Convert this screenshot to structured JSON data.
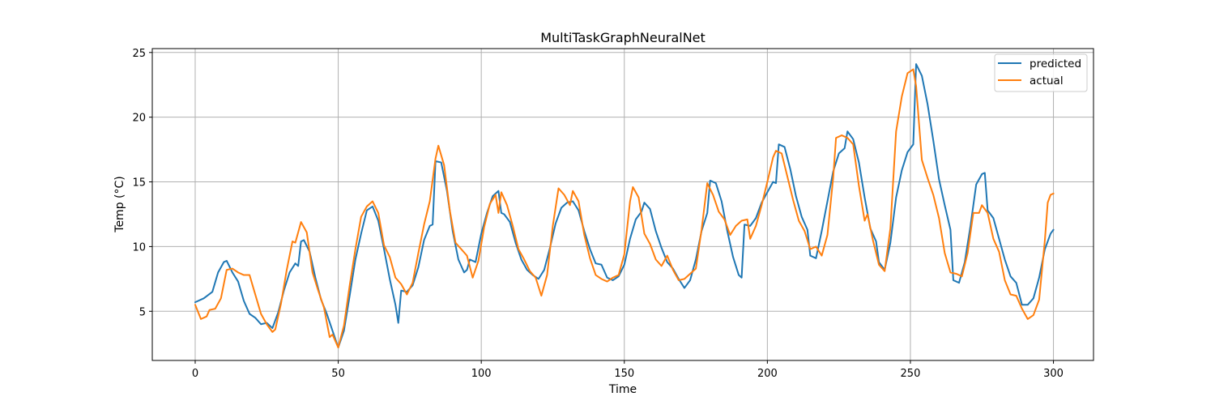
{
  "chart_data": {
    "type": "line",
    "title": "MultiTaskGraphNeuralNet",
    "xlabel": "Time",
    "ylabel": "Temp (°C)",
    "xlim": [
      -15,
      314
    ],
    "ylim": [
      1.2,
      25.3
    ],
    "xticks": [
      0,
      50,
      100,
      150,
      200,
      250,
      300
    ],
    "yticks": [
      5,
      10,
      15,
      20,
      25
    ],
    "grid": true,
    "legend_position": "top-right",
    "colors": {
      "predicted": "#1f77b4",
      "actual": "#ff7f0e",
      "grid": "#b0b0b0"
    },
    "series": [
      {
        "name": "predicted",
        "color": "#1f77b4",
        "points": [
          [
            0,
            5.7
          ],
          [
            3,
            6.0
          ],
          [
            6,
            6.5
          ],
          [
            8,
            8.0
          ],
          [
            10,
            8.8
          ],
          [
            11,
            8.9
          ],
          [
            13,
            8.0
          ],
          [
            15,
            7.3
          ],
          [
            17,
            5.8
          ],
          [
            19,
            4.8
          ],
          [
            21,
            4.5
          ],
          [
            23,
            4.0
          ],
          [
            25,
            4.1
          ],
          [
            27,
            3.7
          ],
          [
            29,
            4.9
          ],
          [
            31,
            6.6
          ],
          [
            33,
            8.0
          ],
          [
            35,
            8.7
          ],
          [
            36,
            8.5
          ],
          [
            37,
            10.4
          ],
          [
            38,
            10.5
          ],
          [
            40,
            9.6
          ],
          [
            42,
            7.6
          ],
          [
            44,
            5.9
          ],
          [
            46,
            4.8
          ],
          [
            48,
            3.5
          ],
          [
            50,
            2.2
          ],
          [
            52,
            3.5
          ],
          [
            54,
            6.2
          ],
          [
            56,
            9.0
          ],
          [
            58,
            11.0
          ],
          [
            60,
            12.8
          ],
          [
            62,
            13.1
          ],
          [
            64,
            12.0
          ],
          [
            66,
            9.8
          ],
          [
            68,
            7.5
          ],
          [
            70,
            5.5
          ],
          [
            71,
            4.1
          ],
          [
            72,
            6.6
          ],
          [
            74,
            6.5
          ],
          [
            76,
            7.0
          ],
          [
            78,
            8.4
          ],
          [
            80,
            10.5
          ],
          [
            82,
            11.6
          ],
          [
            83,
            11.7
          ],
          [
            84,
            16.6
          ],
          [
            86,
            16.5
          ],
          [
            88,
            14.3
          ],
          [
            90,
            11.2
          ],
          [
            92,
            9.0
          ],
          [
            94,
            8.0
          ],
          [
            95,
            8.2
          ],
          [
            96,
            9.0
          ],
          [
            98,
            8.8
          ],
          [
            100,
            11.0
          ],
          [
            102,
            12.6
          ],
          [
            104,
            13.9
          ],
          [
            106,
            14.3
          ],
          [
            107,
            12.6
          ],
          [
            108,
            12.5
          ],
          [
            110,
            11.9
          ],
          [
            112,
            10.3
          ],
          [
            114,
            9.0
          ],
          [
            116,
            8.2
          ],
          [
            118,
            7.8
          ],
          [
            120,
            7.5
          ],
          [
            122,
            8.2
          ],
          [
            124,
            9.9
          ],
          [
            126,
            11.8
          ],
          [
            128,
            13.0
          ],
          [
            130,
            13.4
          ],
          [
            132,
            13.5
          ],
          [
            134,
            12.8
          ],
          [
            136,
            11.2
          ],
          [
            138,
            9.8
          ],
          [
            140,
            8.7
          ],
          [
            142,
            8.6
          ],
          [
            144,
            7.6
          ],
          [
            146,
            7.4
          ],
          [
            148,
            7.7
          ],
          [
            150,
            8.6
          ],
          [
            152,
            10.6
          ],
          [
            154,
            12.1
          ],
          [
            156,
            12.7
          ],
          [
            157,
            13.4
          ],
          [
            159,
            12.9
          ],
          [
            161,
            11.2
          ],
          [
            163,
            9.9
          ],
          [
            165,
            8.8
          ],
          [
            167,
            8.3
          ],
          [
            169,
            7.5
          ],
          [
            171,
            6.8
          ],
          [
            173,
            7.4
          ],
          [
            175,
            9.0
          ],
          [
            177,
            11.2
          ],
          [
            179,
            12.6
          ],
          [
            180,
            15.1
          ],
          [
            182,
            14.9
          ],
          [
            184,
            13.5
          ],
          [
            186,
            11.2
          ],
          [
            188,
            9.2
          ],
          [
            190,
            7.8
          ],
          [
            191,
            7.6
          ],
          [
            192,
            11.7
          ],
          [
            194,
            11.6
          ],
          [
            196,
            12.2
          ],
          [
            198,
            13.4
          ],
          [
            200,
            14.2
          ],
          [
            202,
            15.0
          ],
          [
            203,
            14.9
          ],
          [
            204,
            17.9
          ],
          [
            206,
            17.7
          ],
          [
            208,
            16.0
          ],
          [
            210,
            13.9
          ],
          [
            212,
            12.3
          ],
          [
            214,
            11.3
          ],
          [
            215,
            9.3
          ],
          [
            217,
            9.1
          ],
          [
            219,
            11.2
          ],
          [
            221,
            13.5
          ],
          [
            223,
            15.8
          ],
          [
            225,
            17.2
          ],
          [
            227,
            17.6
          ],
          [
            228,
            18.9
          ],
          [
            230,
            18.3
          ],
          [
            232,
            16.5
          ],
          [
            234,
            13.8
          ],
          [
            236,
            11.4
          ],
          [
            238,
            10.4
          ],
          [
            239,
            8.8
          ],
          [
            241,
            8.2
          ],
          [
            243,
            10.3
          ],
          [
            245,
            13.8
          ],
          [
            247,
            15.9
          ],
          [
            249,
            17.3
          ],
          [
            251,
            17.9
          ],
          [
            252,
            24.1
          ],
          [
            254,
            23.2
          ],
          [
            256,
            21.0
          ],
          [
            258,
            18.2
          ],
          [
            260,
            15.2
          ],
          [
            262,
            13.2
          ],
          [
            264,
            11.3
          ],
          [
            265,
            7.4
          ],
          [
            267,
            7.2
          ],
          [
            269,
            8.8
          ],
          [
            271,
            11.6
          ],
          [
            273,
            14.8
          ],
          [
            275,
            15.6
          ],
          [
            276,
            15.7
          ],
          [
            277,
            12.8
          ],
          [
            279,
            12.2
          ],
          [
            281,
            10.6
          ],
          [
            283,
            9.0
          ],
          [
            285,
            7.7
          ],
          [
            287,
            7.2
          ],
          [
            289,
            5.5
          ],
          [
            291,
            5.5
          ],
          [
            293,
            6.0
          ],
          [
            295,
            7.6
          ],
          [
            297,
            9.8
          ],
          [
            299,
            11.0
          ],
          [
            300,
            11.3
          ]
        ]
      },
      {
        "name": "actual",
        "color": "#ff7f0e",
        "points": [
          [
            0,
            5.5
          ],
          [
            2,
            4.4
          ],
          [
            4,
            4.6
          ],
          [
            5,
            5.1
          ],
          [
            7,
            5.2
          ],
          [
            9,
            6.0
          ],
          [
            11,
            8.2
          ],
          [
            13,
            8.3
          ],
          [
            15,
            8.0
          ],
          [
            17,
            7.8
          ],
          [
            19,
            7.8
          ],
          [
            21,
            6.3
          ],
          [
            23,
            4.8
          ],
          [
            25,
            4.0
          ],
          [
            27,
            3.4
          ],
          [
            28,
            3.6
          ],
          [
            30,
            5.6
          ],
          [
            32,
            8.2
          ],
          [
            34,
            10.4
          ],
          [
            35,
            10.3
          ],
          [
            37,
            11.9
          ],
          [
            39,
            11.1
          ],
          [
            41,
            8.0
          ],
          [
            43,
            6.6
          ],
          [
            45,
            5.3
          ],
          [
            47,
            3.0
          ],
          [
            48,
            3.2
          ],
          [
            50,
            2.2
          ],
          [
            52,
            3.9
          ],
          [
            54,
            7.0
          ],
          [
            56,
            9.8
          ],
          [
            58,
            12.3
          ],
          [
            60,
            13.1
          ],
          [
            62,
            13.5
          ],
          [
            64,
            12.6
          ],
          [
            66,
            10.1
          ],
          [
            68,
            9.2
          ],
          [
            70,
            7.6
          ],
          [
            72,
            7.1
          ],
          [
            74,
            6.3
          ],
          [
            76,
            7.2
          ],
          [
            78,
            9.5
          ],
          [
            80,
            11.7
          ],
          [
            82,
            13.5
          ],
          [
            84,
            16.8
          ],
          [
            85,
            17.8
          ],
          [
            87,
            16.3
          ],
          [
            89,
            12.8
          ],
          [
            91,
            10.3
          ],
          [
            93,
            9.8
          ],
          [
            95,
            9.3
          ],
          [
            97,
            7.6
          ],
          [
            99,
            8.9
          ],
          [
            101,
            11.5
          ],
          [
            103,
            13.3
          ],
          [
            105,
            14.0
          ],
          [
            106,
            12.6
          ],
          [
            107,
            14.2
          ],
          [
            109,
            13.2
          ],
          [
            111,
            11.6
          ],
          [
            113,
            9.8
          ],
          [
            115,
            9.0
          ],
          [
            117,
            8.1
          ],
          [
            119,
            7.6
          ],
          [
            121,
            6.2
          ],
          [
            123,
            7.8
          ],
          [
            125,
            11.6
          ],
          [
            127,
            14.5
          ],
          [
            129,
            14.0
          ],
          [
            131,
            13.2
          ],
          [
            132,
            14.3
          ],
          [
            134,
            13.5
          ],
          [
            136,
            10.9
          ],
          [
            138,
            9.1
          ],
          [
            140,
            7.8
          ],
          [
            142,
            7.5
          ],
          [
            144,
            7.3
          ],
          [
            146,
            7.6
          ],
          [
            148,
            7.8
          ],
          [
            150,
            9.4
          ],
          [
            152,
            13.5
          ],
          [
            153,
            14.6
          ],
          [
            155,
            13.8
          ],
          [
            157,
            11.0
          ],
          [
            159,
            10.2
          ],
          [
            161,
            9.0
          ],
          [
            163,
            8.5
          ],
          [
            165,
            9.3
          ],
          [
            167,
            8.2
          ],
          [
            169,
            7.4
          ],
          [
            171,
            7.5
          ],
          [
            173,
            7.9
          ],
          [
            175,
            8.3
          ],
          [
            177,
            11.3
          ],
          [
            179,
            14.9
          ],
          [
            181,
            14.0
          ],
          [
            183,
            12.7
          ],
          [
            185,
            12.1
          ],
          [
            187,
            10.9
          ],
          [
            189,
            11.6
          ],
          [
            191,
            12.0
          ],
          [
            193,
            12.1
          ],
          [
            194,
            10.6
          ],
          [
            196,
            11.6
          ],
          [
            198,
            13.2
          ],
          [
            200,
            15.0
          ],
          [
            202,
            16.9
          ],
          [
            203,
            17.4
          ],
          [
            205,
            17.2
          ],
          [
            207,
            15.4
          ],
          [
            209,
            13.6
          ],
          [
            211,
            12.0
          ],
          [
            213,
            11.2
          ],
          [
            215,
            9.8
          ],
          [
            217,
            10.0
          ],
          [
            219,
            9.3
          ],
          [
            221,
            10.9
          ],
          [
            223,
            15.3
          ],
          [
            224,
            18.4
          ],
          [
            226,
            18.6
          ],
          [
            228,
            18.4
          ],
          [
            230,
            17.9
          ],
          [
            232,
            14.7
          ],
          [
            234,
            12.0
          ],
          [
            235,
            12.5
          ],
          [
            237,
            10.4
          ],
          [
            239,
            8.6
          ],
          [
            241,
            8.1
          ],
          [
            243,
            11.4
          ],
          [
            245,
            18.9
          ],
          [
            247,
            21.6
          ],
          [
            249,
            23.4
          ],
          [
            251,
            23.7
          ],
          [
            252,
            22.4
          ],
          [
            254,
            16.7
          ],
          [
            256,
            15.3
          ],
          [
            258,
            14.0
          ],
          [
            260,
            12.2
          ],
          [
            262,
            9.5
          ],
          [
            264,
            8.0
          ],
          [
            266,
            7.9
          ],
          [
            268,
            7.7
          ],
          [
            270,
            9.5
          ],
          [
            272,
            12.6
          ],
          [
            274,
            12.6
          ],
          [
            275,
            13.2
          ],
          [
            277,
            12.6
          ],
          [
            279,
            10.6
          ],
          [
            281,
            9.6
          ],
          [
            283,
            7.4
          ],
          [
            285,
            6.3
          ],
          [
            287,
            6.2
          ],
          [
            289,
            5.2
          ],
          [
            291,
            4.4
          ],
          [
            293,
            4.7
          ],
          [
            295,
            5.9
          ],
          [
            297,
            10.5
          ],
          [
            298,
            13.4
          ],
          [
            299,
            14.0
          ],
          [
            300,
            14.1
          ]
        ]
      }
    ]
  }
}
